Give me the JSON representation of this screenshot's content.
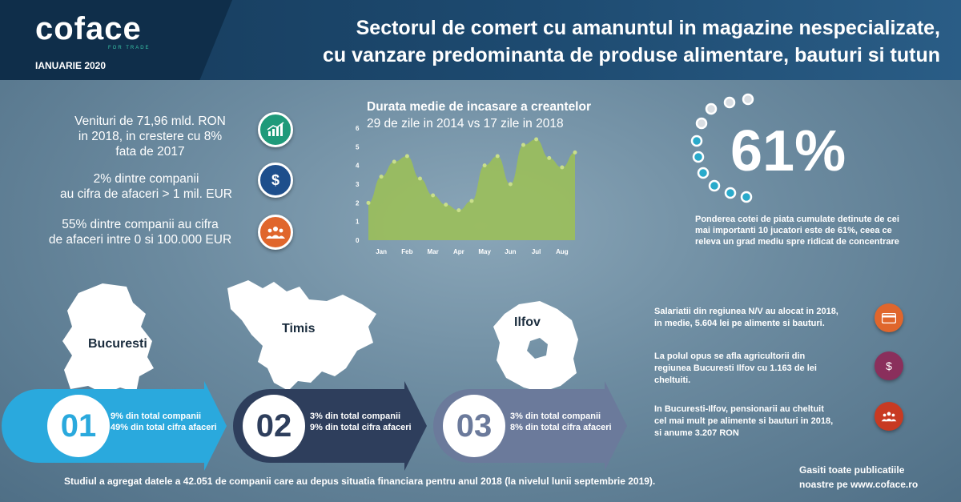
{
  "header": {
    "logo": "coface",
    "logo_tagline": "FOR TRADE",
    "date": "IANUARIE 2020",
    "title_line1": "Sectorul de comert cu amanuntul in magazine nespecializate,",
    "title_line2": "cu vanzare predominanta de produse alimentare, bauturi si tutun"
  },
  "stats": [
    {
      "line1": "Venituri de 71,96 mld. RON",
      "line2": "in 2018, in crestere cu 8%",
      "line3": "fata de 2017",
      "icon": "growth-chart-icon",
      "color": "#1f9a7a"
    },
    {
      "line1": "2% dintre companii",
      "line2": "au cifra de afaceri > 1 mil. EUR",
      "icon": "money-bag-icon",
      "color": "#1e4f8c"
    },
    {
      "line1": "55% dintre companii au cifra",
      "line2": "de afaceri intre 0 si 100.000 EUR",
      "icon": "people-group-icon",
      "color": "#e0662c"
    }
  ],
  "chart": {
    "title": "Durata medie de incasare a creantelor",
    "subtitle": "29 de zile in 2014 vs 17 zile in 2018"
  },
  "chart_data": {
    "type": "area",
    "categories": [
      "Jan",
      "Feb",
      "Mar",
      "Apr",
      "May",
      "Jun",
      "Jul",
      "Aug"
    ],
    "x": [
      0,
      0.5,
      1,
      1.5,
      2,
      2.5,
      3,
      3.5,
      4,
      4.5,
      5,
      5.5,
      6,
      6.5,
      7,
      7.5,
      8
    ],
    "values": [
      2.0,
      3.4,
      4.2,
      4.5,
      3.3,
      2.4,
      1.9,
      1.6,
      2.1,
      4.0,
      4.5,
      3.0,
      5.1,
      5.4,
      4.4,
      3.9,
      4.7
    ],
    "ylim": [
      0,
      6
    ],
    "yticks": [
      "0",
      "1",
      "2",
      "3",
      "4",
      "5",
      "6"
    ],
    "color": "#9bbf5a"
  },
  "market_share": {
    "value": "61%",
    "desc": "Ponderea cotei de piata cumulate detinute de cei mai importanti 10 jucatori este de 61%, ceea ce releva un grad mediu spre ridicat de concentrare",
    "dots_total": 10,
    "dots_highlighted": 6
  },
  "regions": [
    {
      "name": "Bucuresti",
      "num": "01",
      "line1": "9% din total companii",
      "line2": "49% din total cifra afaceri",
      "color": "#2aa9dd"
    },
    {
      "name": "Timis",
      "num": "02",
      "line1": "3% din total companii",
      "line2": "9% din total cifra afaceri",
      "color": "#2e3e5c"
    },
    {
      "name": "Ilfov",
      "num": "03",
      "line1": "3% din total companii",
      "line2": "8% din total cifra afaceri",
      "color": "#6b7a9b"
    }
  ],
  "facts": [
    {
      "line1": "Salariatii din regiunea N/V au alocat in 2018,",
      "line2": "in medie, 5.604 lei pe alimente si bauturi.",
      "icon": "credit-card-icon",
      "color": "#e0662c"
    },
    {
      "line1": "La polul opus se afla agricultorii din",
      "line2": "regiunea Bucuresti Ilfov cu 1.163 de lei",
      "line3": "cheltuiti.",
      "icon": "money-bag-icon",
      "color": "#8a2f5c"
    },
    {
      "line1": "In Bucuresti-Ilfov, pensionarii au cheltuit",
      "line2": "cel mai mult pe alimente si bauturi in 2018,",
      "line3": "si anume 3.207 RON",
      "icon": "people-group-icon",
      "color": "#c83a22"
    }
  ],
  "footer": {
    "note": "Studiul a agregat datele a 42.051 de companii care au depus situatia financiara pentru anul 2018 (la nivelul lunii septembrie 2019).",
    "web_line1": "Gasiti toate publicatiile",
    "web_line2": "noastre pe www.coface.ro"
  }
}
